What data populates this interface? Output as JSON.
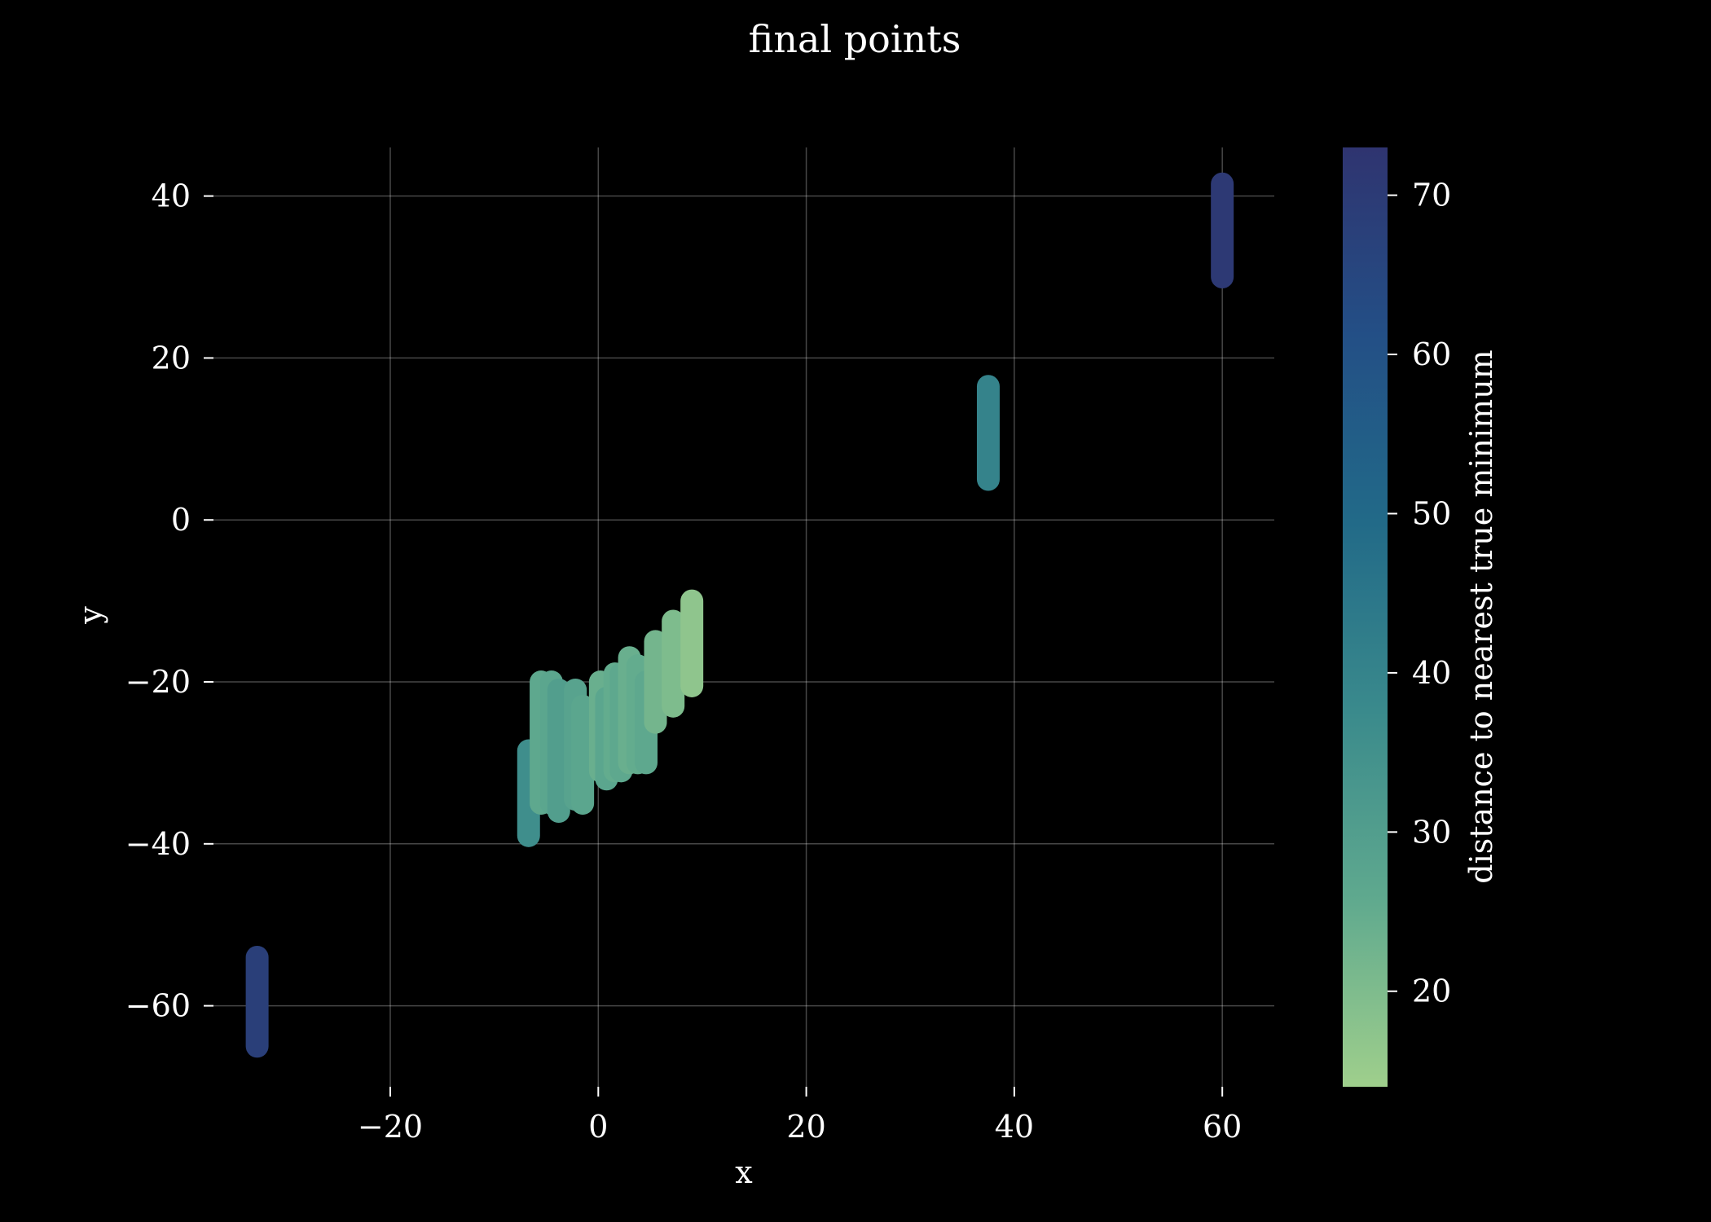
{
  "chart_data": {
    "type": "scatter",
    "title": "final points",
    "xlabel": "x",
    "ylabel": "y",
    "xlim": [
      -37,
      65
    ],
    "ylim": [
      -70,
      46
    ],
    "xticks": [
      -20,
      0,
      20,
      40,
      60
    ],
    "yticks": [
      -60,
      -40,
      -20,
      0,
      20,
      40
    ],
    "xtick_labels": [
      "−20",
      "0",
      "20",
      "40",
      "60"
    ],
    "ytick_labels": [
      "−60",
      "−40",
      "−20",
      "0",
      "20",
      "40"
    ],
    "grid": true,
    "colorbar": {
      "label": "distance to nearest true minimum",
      "range": [
        14,
        73
      ],
      "ticks": [
        20,
        30,
        40,
        50,
        60,
        70
      ],
      "tick_labels": [
        "20",
        "30",
        "40",
        "50",
        "60",
        "70"
      ],
      "colormap": [
        "#9fcf8c",
        "#5fa98e",
        "#3a8a8c",
        "#226a88",
        "#234f86",
        "#2f3470"
      ]
    },
    "series": [
      {
        "values": [
          {
            "x": -32.8,
            "y_low": -65,
            "y_high": -54,
            "c": 68
          },
          {
            "x": 60.0,
            "y_low": 30,
            "y_high": 41.5,
            "c": 71
          },
          {
            "x": 37.5,
            "y_low": 5,
            "y_high": 16.5,
            "c": 40
          },
          {
            "x": -6.7,
            "y_low": -39,
            "y_high": -28.5,
            "c": 36
          },
          {
            "x": -5.5,
            "y_low": -35,
            "y_high": -20,
            "c": 26
          },
          {
            "x": -4.5,
            "y_low": -35,
            "y_high": -20,
            "c": 27
          },
          {
            "x": -3.8,
            "y_low": -36,
            "y_high": -21,
            "c": 30
          },
          {
            "x": -2.2,
            "y_low": -34.5,
            "y_high": -21,
            "c": 28
          },
          {
            "x": -1.5,
            "y_low": -35,
            "y_high": -23,
            "c": 27
          },
          {
            "x": 0.2,
            "y_low": -31,
            "y_high": -20,
            "c": 24
          },
          {
            "x": 0.8,
            "y_low": -32,
            "y_high": -22,
            "c": 27
          },
          {
            "x": 1.6,
            "y_low": -31,
            "y_high": -19,
            "c": 25
          },
          {
            "x": 2.2,
            "y_low": -31,
            "y_high": -19,
            "c": 26
          },
          {
            "x": 3.0,
            "y_low": -30,
            "y_high": -17,
            "c": 24
          },
          {
            "x": 3.8,
            "y_low": -30,
            "y_high": -18,
            "c": 25
          },
          {
            "x": 4.6,
            "y_low": -30,
            "y_high": -20,
            "c": 26
          },
          {
            "x": 5.5,
            "y_low": -25,
            "y_high": -15,
            "c": 22
          },
          {
            "x": 7.2,
            "y_low": -23,
            "y_high": -12.5,
            "c": 20
          },
          {
            "x": 9.0,
            "y_low": -20.5,
            "y_high": -10,
            "c": 17
          }
        ]
      }
    ]
  }
}
